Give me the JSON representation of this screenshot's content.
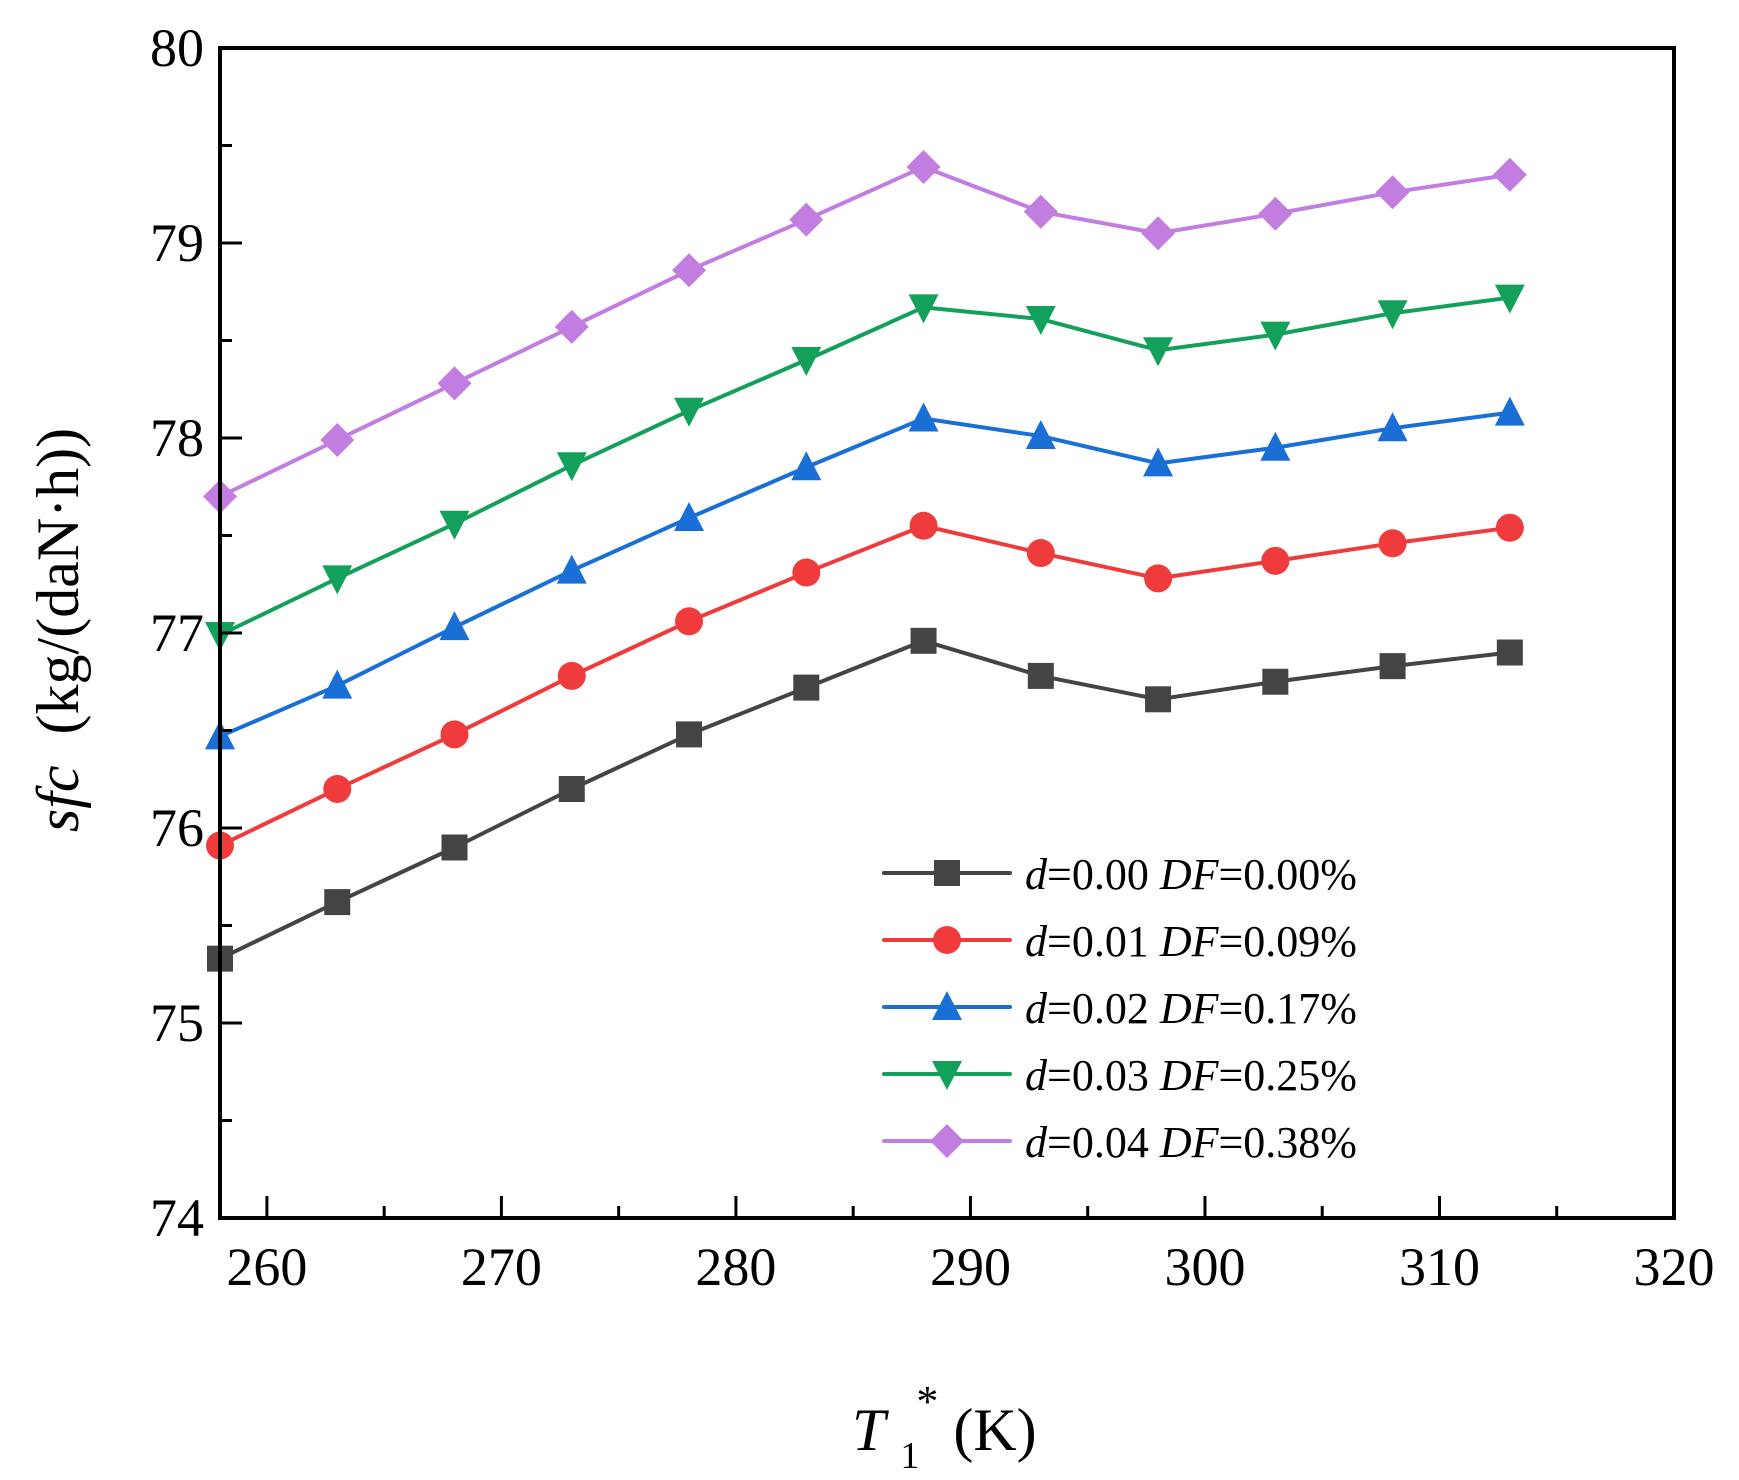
{
  "chart_data": {
    "type": "line",
    "title": "",
    "xlabel": {
      "main": "T",
      "subscript": "1",
      "superscript": "*",
      "unit": "(K)"
    },
    "ylabel": {
      "variable": "sfc",
      "unit": "(kg/(daN·h))"
    },
    "xlim": [
      258,
      320
    ],
    "ylim": [
      74,
      80
    ],
    "x_ticks": [
      260,
      270,
      280,
      290,
      300,
      310,
      320
    ],
    "y_ticks": [
      74,
      75,
      76,
      77,
      78,
      79,
      80
    ],
    "grid": false,
    "legend_position": "bottom-right",
    "x": [
      258,
      263,
      268,
      273,
      278,
      283,
      288,
      293,
      298,
      303,
      308,
      313
    ],
    "series": [
      {
        "name": "d=0.00 DF=0.00%",
        "d_label": "d",
        "d_value": "=0.00",
        "df_label": "DF",
        "df_value": "=0.00%",
        "color": "#444444",
        "marker": "square",
        "values": [
          75.33,
          75.62,
          75.9,
          76.2,
          76.48,
          76.72,
          76.96,
          76.78,
          76.66,
          76.75,
          76.83,
          76.9
        ]
      },
      {
        "name": "d=0.01 DF=0.09%",
        "d_label": "d",
        "d_value": "=0.01",
        "df_label": "DF",
        "df_value": "=0.09%",
        "color": "#ef3b3b",
        "marker": "circle",
        "values": [
          75.91,
          76.2,
          76.48,
          76.78,
          77.06,
          77.31,
          77.55,
          77.41,
          77.28,
          77.37,
          77.46,
          77.54
        ]
      },
      {
        "name": "d=0.02 DF=0.17%",
        "d_label": "d",
        "d_value": "=0.02",
        "df_label": "DF",
        "df_value": "=0.17%",
        "color": "#1a6fd6",
        "marker": "triangle-up",
        "values": [
          76.47,
          76.73,
          77.03,
          77.32,
          77.59,
          77.85,
          78.1,
          78.01,
          77.87,
          77.95,
          78.05,
          78.13
        ]
      },
      {
        "name": "d=0.03 DF=0.25%",
        "d_label": "d",
        "d_value": "=0.03",
        "df_label": "DF",
        "df_value": "=0.25%",
        "color": "#12a05a",
        "marker": "triangle-down",
        "values": [
          76.99,
          77.28,
          77.56,
          77.86,
          78.14,
          78.4,
          78.67,
          78.61,
          78.45,
          78.53,
          78.64,
          78.72
        ]
      },
      {
        "name": "d=0.04 DF=0.38%",
        "d_label": "d",
        "d_value": "=0.04",
        "df_label": "DF",
        "df_value": "=0.38%",
        "color": "#c17ee0",
        "marker": "diamond",
        "values": [
          77.7,
          77.99,
          78.28,
          78.57,
          78.86,
          79.12,
          79.39,
          79.16,
          79.05,
          79.15,
          79.26,
          79.35
        ]
      }
    ]
  }
}
